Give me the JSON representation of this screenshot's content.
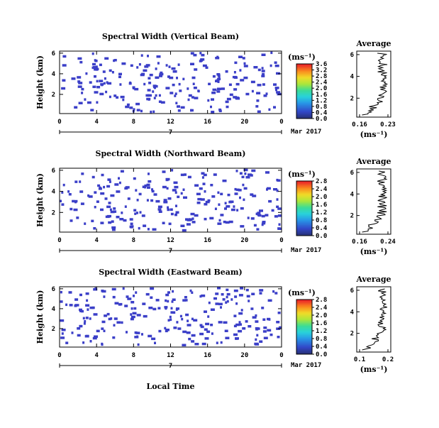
{
  "chart_data": [
    {
      "type": "heatmap",
      "title": "Spectral Width (Vertical Beam)",
      "ylabel": "Height (km)",
      "yticks": [
        "2",
        "4",
        "6"
      ],
      "xticks": [
        "0",
        "4",
        "8",
        "12",
        "16",
        "20",
        "0"
      ],
      "date_day": "7",
      "date_month": "Mar 2017",
      "colorbar": {
        "unit": "(ms⁻¹)",
        "ticks": [
          "0.0",
          "0.4",
          "0.8",
          "1.2",
          "1.6",
          "2.0",
          "2.4",
          "2.8",
          "3.2",
          "3.6"
        ]
      },
      "average": {
        "title": "Average",
        "xticks": [
          "0.16",
          "0.23"
        ],
        "yticks": [
          "2",
          "4",
          "6"
        ],
        "xlabel": "(ms⁻¹)"
      }
    },
    {
      "type": "heatmap",
      "title": "Spectral Width (Northward Beam)",
      "ylabel": "Height (km)",
      "yticks": [
        "2",
        "4",
        "6"
      ],
      "xticks": [
        "0",
        "4",
        "8",
        "12",
        "16",
        "20",
        "0"
      ],
      "date_day": "7",
      "date_month": "Mar 2017",
      "colorbar": {
        "unit": "(ms⁻¹)",
        "ticks": [
          "0.0",
          "0.4",
          "0.8",
          "1.2",
          "1.6",
          "2.0",
          "2.4",
          "2.8"
        ]
      },
      "average": {
        "title": "Average",
        "xticks": [
          "0.16",
          "0.24"
        ],
        "yticks": [
          "2",
          "4",
          "6"
        ],
        "xlabel": "(ms⁻¹)"
      }
    },
    {
      "type": "heatmap",
      "title": "Spectral Width (Eastward Beam)",
      "ylabel": "Height (km)",
      "yticks": [
        "2",
        "4",
        "6"
      ],
      "xticks": [
        "0",
        "4",
        "8",
        "12",
        "16",
        "20",
        "0"
      ],
      "date_day": "7",
      "date_month": "Mar 2017",
      "colorbar": {
        "unit": "(ms⁻¹)",
        "ticks": [
          "0.0",
          "0.4",
          "0.8",
          "1.2",
          "1.6",
          "2.0",
          "2.4",
          "2.8"
        ]
      },
      "average": {
        "title": "Average",
        "xticks": [
          "0.1",
          "0.2"
        ],
        "yticks": [
          "2",
          "4",
          "6"
        ],
        "xlabel": "(ms⁻¹)"
      }
    }
  ],
  "xlabel": "Local Time",
  "colors": {
    "data_cell": "#3b3fc8",
    "axis": "#000000"
  }
}
